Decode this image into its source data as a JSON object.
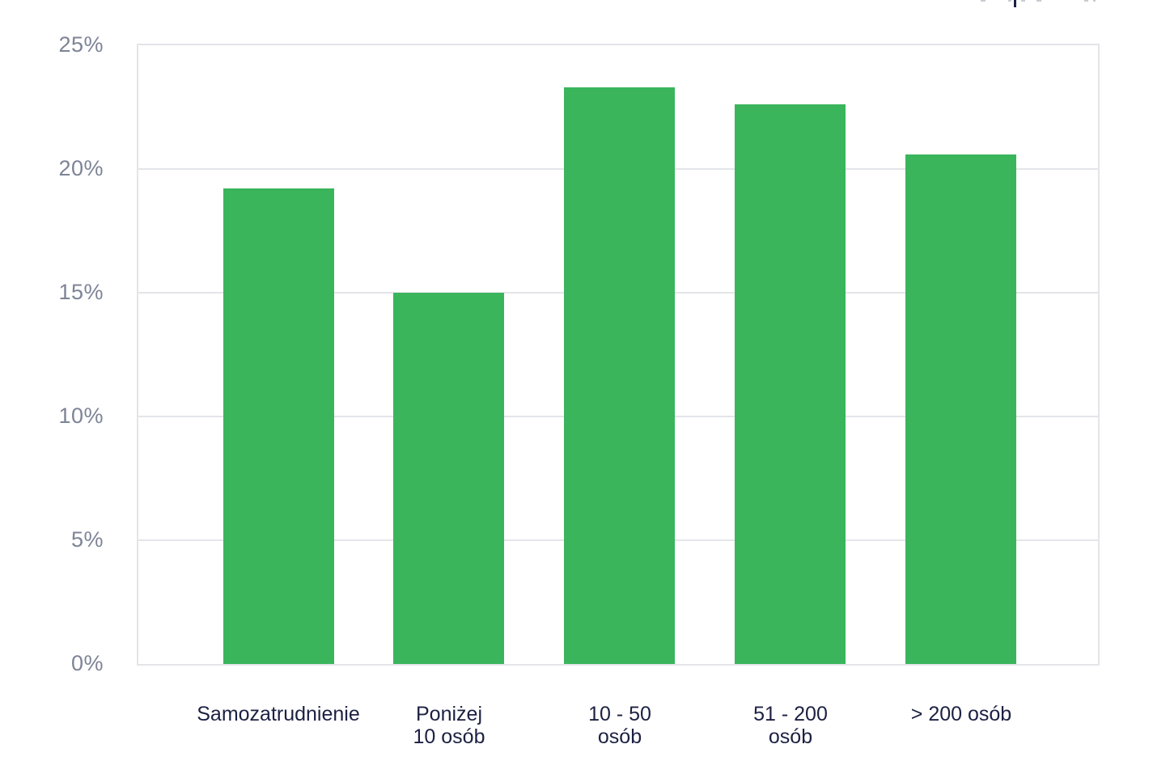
{
  "chart_data": {
    "type": "bar",
    "title": "",
    "xlabel": "",
    "ylabel": "",
    "categories": [
      "Samozatrudnienie",
      "Poniżej 10 osób",
      "10 - 50 osób",
      "51 - 200 osób",
      "> 200 osób"
    ],
    "category_lines": [
      [
        "Samozatrudnienie"
      ],
      [
        "Poniżej",
        "10 osób"
      ],
      [
        "10 - 50",
        "osób"
      ],
      [
        "51 - 200",
        "osób"
      ],
      [
        "> 200 osób"
      ]
    ],
    "values": [
      19.2,
      15.0,
      23.3,
      22.6,
      20.6
    ],
    "unit": "%",
    "ylim": [
      0,
      25
    ],
    "ytick_values": [
      25,
      20,
      15,
      10,
      5,
      0
    ],
    "ytick_labels": [
      "25%",
      "20%",
      "15%",
      "10%",
      "5%",
      "0%"
    ],
    "grid": true,
    "legend_position": "none",
    "colors": {
      "bar": "#3ab55c",
      "gridline": "#e4e5e9",
      "plot_border": "#e4e5e9",
      "y_tick_label": "#7d8496",
      "x_category_label": "#1c2142",
      "background": "#ffffff",
      "clipped_fragment_dark": "#1c2142",
      "clipped_fragment_light": "#c9ccd3"
    }
  }
}
